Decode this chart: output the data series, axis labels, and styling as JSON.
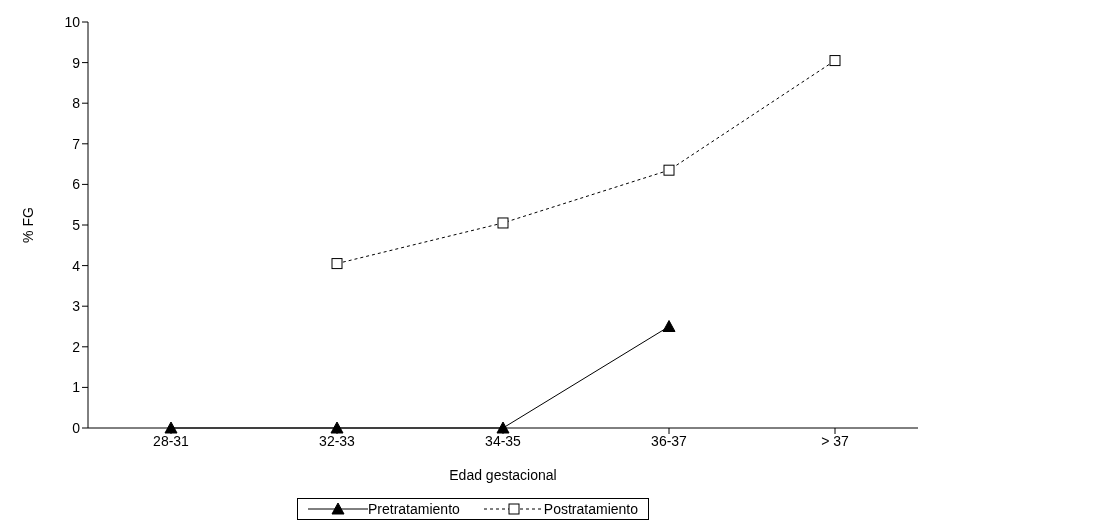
{
  "chart_data": {
    "type": "line",
    "xlabel": "Edad gestacional",
    "ylabel": "% FG",
    "categories": [
      "28-31",
      "32-33",
      "34-35",
      "36-37",
      "> 37"
    ],
    "series": [
      {
        "name": "Pretratamiento",
        "color": "#000000",
        "values": [
          0,
          0,
          0,
          2.5,
          null
        ],
        "marker": "triangle",
        "line_style": "solid"
      },
      {
        "name": "Postratamiento",
        "color": "#000000",
        "values": [
          null,
          4.05,
          5.05,
          6.35,
          9.05
        ],
        "marker": "square",
        "line_style": "dashed"
      }
    ],
    "ylim": [
      0,
      10
    ],
    "yticks": [
      0,
      1,
      2,
      3,
      4,
      5,
      6,
      7,
      8,
      9,
      10
    ],
    "grid": false,
    "legend": "bottom"
  }
}
